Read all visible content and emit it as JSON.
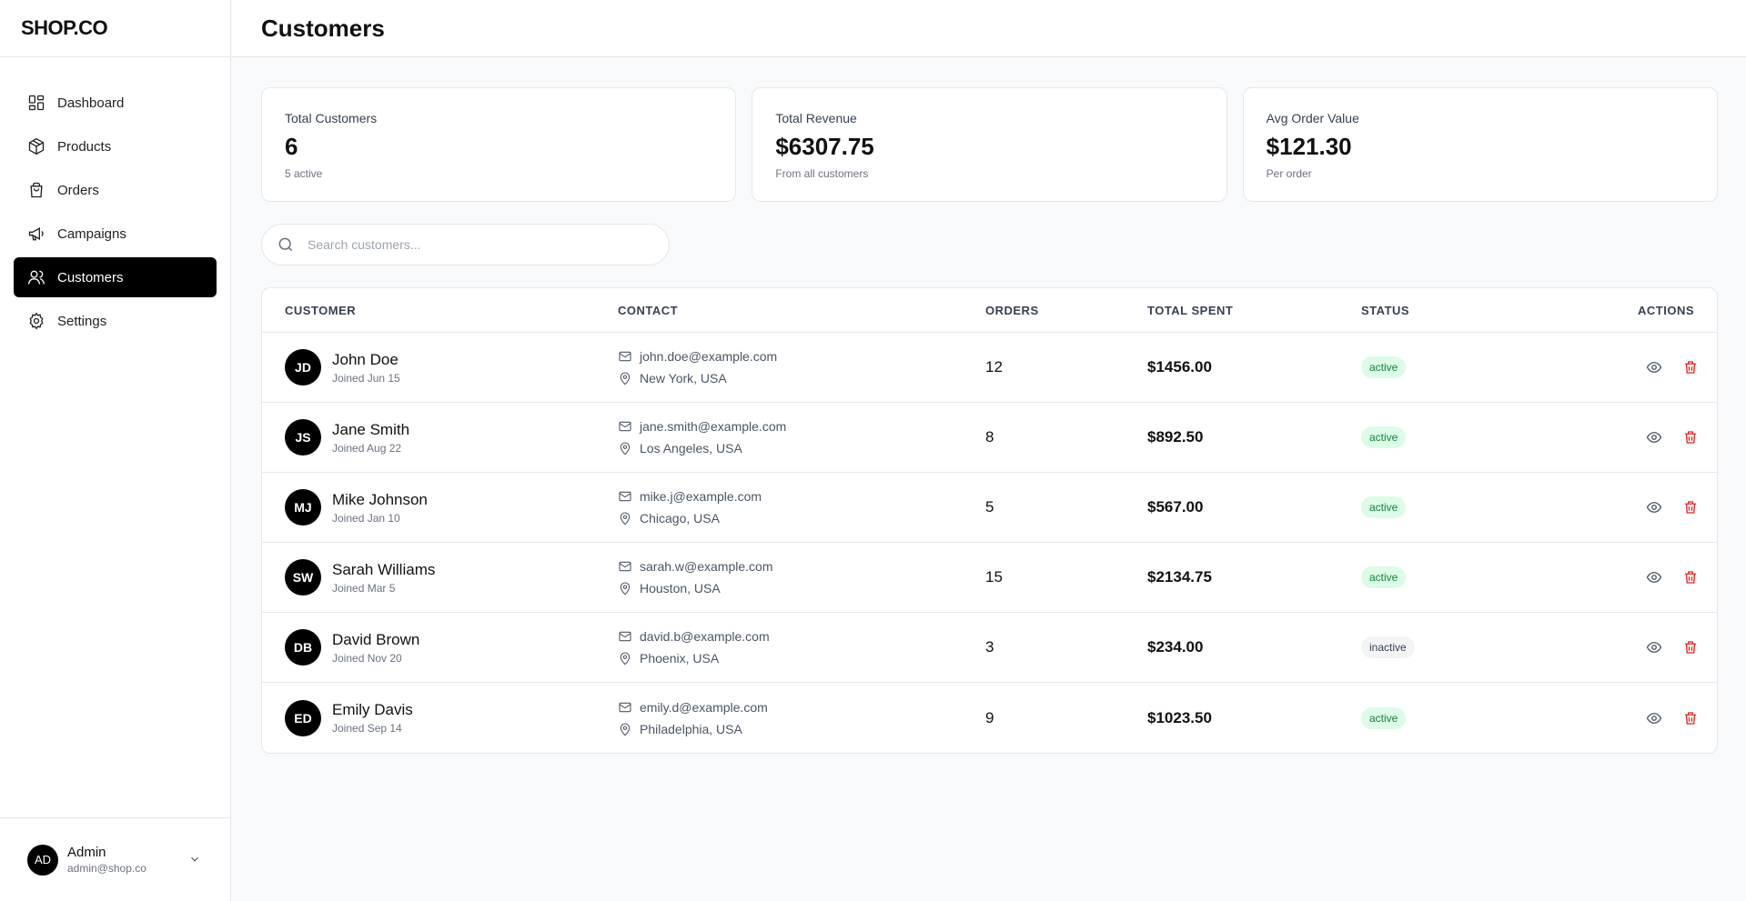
{
  "brand": "SHOP.CO",
  "sidebar": {
    "items": [
      {
        "label": "Dashboard",
        "icon": "dashboard-icon"
      },
      {
        "label": "Products",
        "icon": "box-icon"
      },
      {
        "label": "Orders",
        "icon": "shopping-bag-icon"
      },
      {
        "label": "Campaigns",
        "icon": "megaphone-icon"
      },
      {
        "label": "Customers",
        "icon": "users-icon",
        "active": true
      },
      {
        "label": "Settings",
        "icon": "gear-icon"
      }
    ]
  },
  "user": {
    "initials": "AD",
    "name": "Admin",
    "email": "admin@shop.co"
  },
  "header": {
    "title": "Customers"
  },
  "stats": [
    {
      "label": "Total Customers",
      "value": "6",
      "sub": "5 active"
    },
    {
      "label": "Total Revenue",
      "value": "$6307.75",
      "sub": "From all customers"
    },
    {
      "label": "Avg Order Value",
      "value": "$121.30",
      "sub": "Per order"
    }
  ],
  "search": {
    "placeholder": "Search customers..."
  },
  "table": {
    "headers": {
      "customer": "CUSTOMER",
      "contact": "CONTACT",
      "orders": "ORDERS",
      "spent": "TOTAL SPENT",
      "status": "STATUS",
      "actions": "ACTIONS"
    },
    "rows": [
      {
        "initials": "JD",
        "name": "John Doe",
        "joined": "Joined Jun 15",
        "email": "john.doe@example.com",
        "location": "New York, USA",
        "orders": "12",
        "spent": "$1456.00",
        "status": "active"
      },
      {
        "initials": "JS",
        "name": "Jane Smith",
        "joined": "Joined Aug 22",
        "email": "jane.smith@example.com",
        "location": "Los Angeles, USA",
        "orders": "8",
        "spent": "$892.50",
        "status": "active"
      },
      {
        "initials": "MJ",
        "name": "Mike Johnson",
        "joined": "Joined Jan 10",
        "email": "mike.j@example.com",
        "location": "Chicago, USA",
        "orders": "5",
        "spent": "$567.00",
        "status": "active"
      },
      {
        "initials": "SW",
        "name": "Sarah Williams",
        "joined": "Joined Mar 5",
        "email": "sarah.w@example.com",
        "location": "Houston, USA",
        "orders": "15",
        "spent": "$2134.75",
        "status": "active"
      },
      {
        "initials": "DB",
        "name": "David Brown",
        "joined": "Joined Nov 20",
        "email": "david.b@example.com",
        "location": "Phoenix, USA",
        "orders": "3",
        "spent": "$234.00",
        "status": "inactive"
      },
      {
        "initials": "ED",
        "name": "Emily Davis",
        "joined": "Joined Sep 14",
        "email": "emily.d@example.com",
        "location": "Philadelphia, USA",
        "orders": "9",
        "spent": "$1023.50",
        "status": "active"
      }
    ]
  },
  "colors": {
    "accent": "#000000",
    "active_badge_bg": "#dcfce7",
    "active_badge_text": "#15803d",
    "delete": "#dc2626"
  }
}
